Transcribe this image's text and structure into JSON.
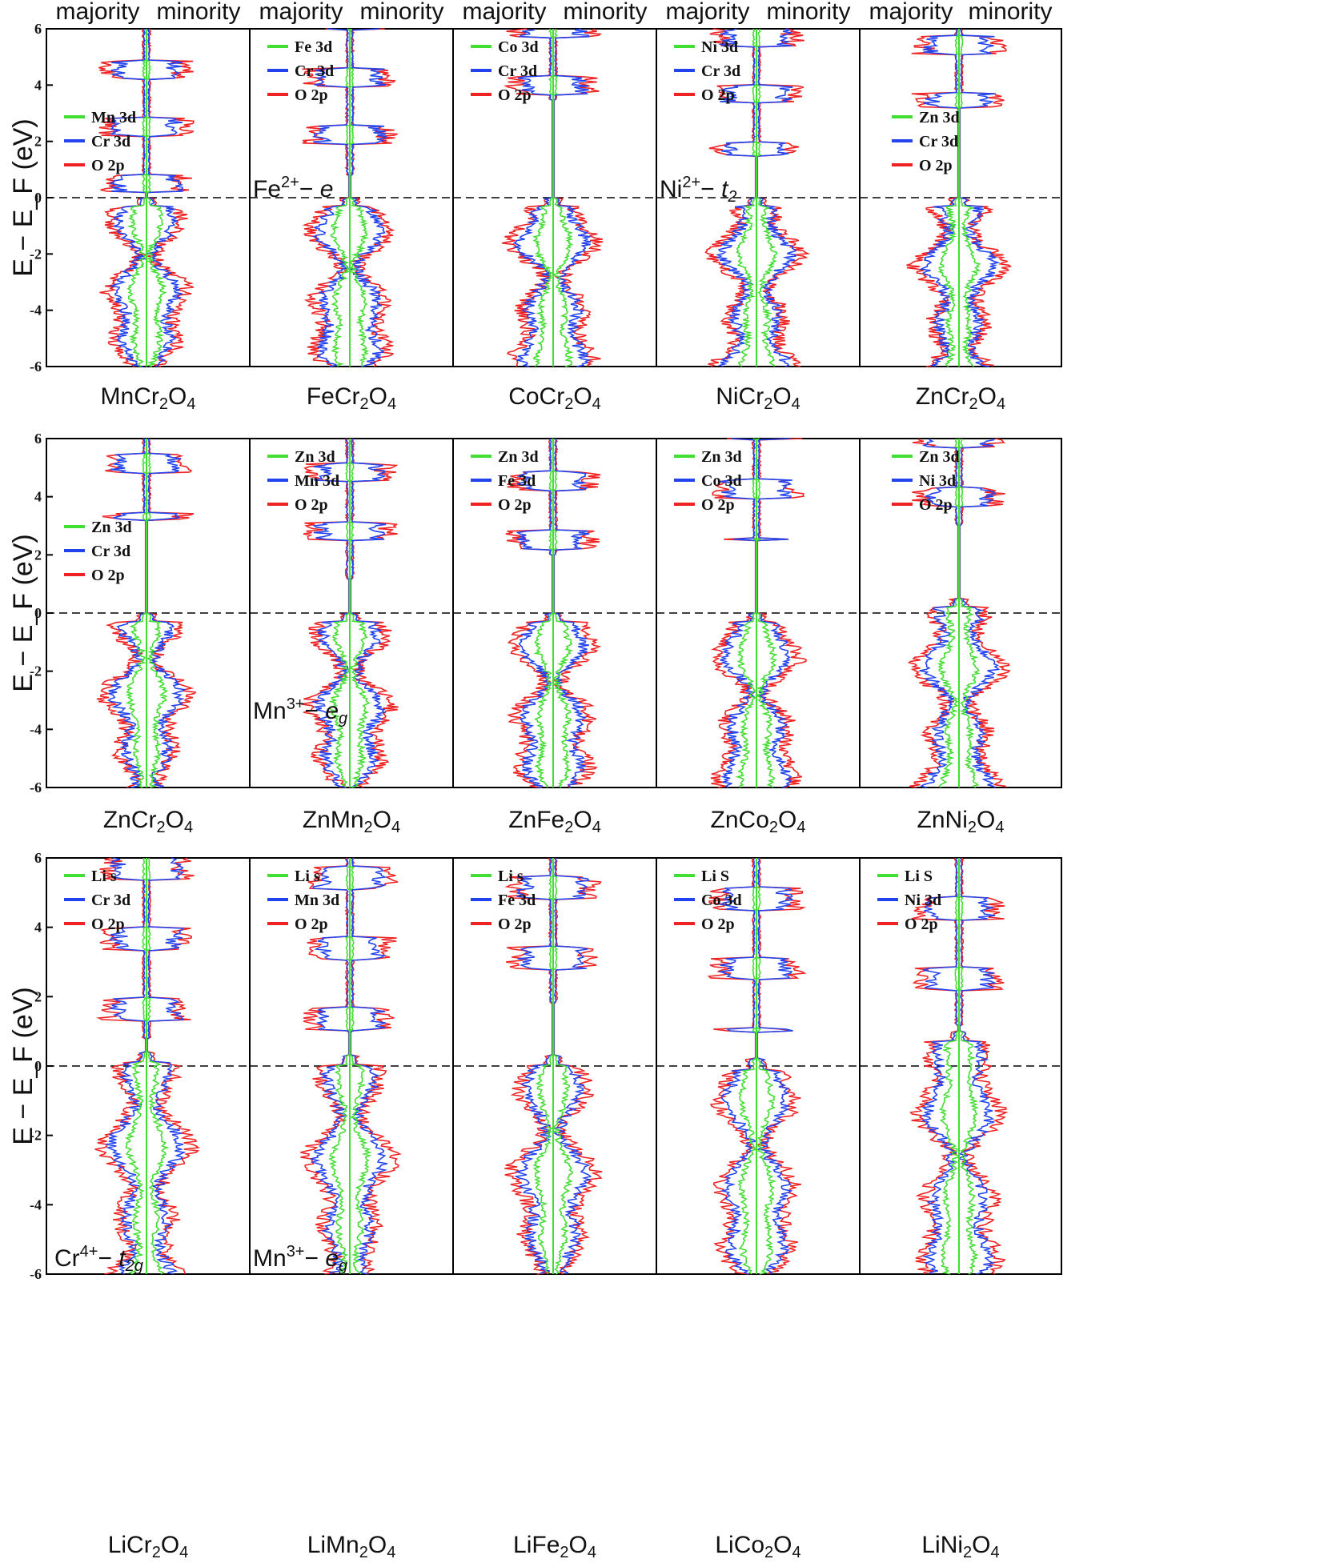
{
  "header": {
    "majority": "majority",
    "minority": "minority"
  },
  "y_axis_label": "E − E_F (eV)",
  "y_ticks": [
    "-6",
    "-4",
    "-2",
    "0",
    "2",
    "4",
    "6"
  ],
  "colors": {
    "cation": "#44dd33",
    "metal": "#2244ee",
    "oxygen": "#ee2222",
    "lithium": "#44dd33"
  },
  "chart_data": [
    {
      "type": "line",
      "compound": "MnCr2O4",
      "xlabel": "MnCr2O4",
      "ylim": [
        -6,
        6
      ],
      "series": [
        {
          "name": "Mn 3d",
          "color": "#44dd33"
        },
        {
          "name": "Cr 3d",
          "color": "#2244ee"
        },
        {
          "name": "O  2p",
          "color": "#ee2222"
        }
      ]
    },
    {
      "type": "line",
      "compound": "FeCr2O4",
      "xlabel": "FeCr2O4",
      "ylim": [
        -6,
        6
      ],
      "series": [
        {
          "name": "Fe 3d",
          "color": "#44dd33"
        },
        {
          "name": "Cr 3d",
          "color": "#2244ee"
        },
        {
          "name": "O  2p",
          "color": "#ee2222"
        }
      ],
      "annotation": "Fe2+ − e"
    },
    {
      "type": "line",
      "compound": "CoCr2O4",
      "xlabel": "CoCr2O4",
      "ylim": [
        -6,
        6
      ],
      "series": [
        {
          "name": "Co 3d",
          "color": "#44dd33"
        },
        {
          "name": "Cr 3d",
          "color": "#2244ee"
        },
        {
          "name": "O  2p",
          "color": "#ee2222"
        }
      ]
    },
    {
      "type": "line",
      "compound": "NiCr2O4",
      "xlabel": "NiCr2O4",
      "ylim": [
        -6,
        6
      ],
      "series": [
        {
          "name": "Ni 3d",
          "color": "#44dd33"
        },
        {
          "name": "Cr 3d",
          "color": "#2244ee"
        },
        {
          "name": "O  2p",
          "color": "#ee2222"
        }
      ],
      "annotation": "Ni2+ − t2"
    },
    {
      "type": "line",
      "compound": "ZnCr2O4",
      "xlabel": "ZnCr2O4",
      "ylim": [
        -6,
        6
      ],
      "series": [
        {
          "name": "Zn 3d",
          "color": "#44dd33"
        },
        {
          "name": "Cr 3d",
          "color": "#2244ee"
        },
        {
          "name": "O 2p",
          "color": "#ee2222"
        }
      ]
    },
    {
      "type": "line",
      "compound": "ZnCr2O4",
      "xlabel": "ZnCr2O4",
      "ylim": [
        -6,
        6
      ],
      "series": [
        {
          "name": "Zn 3d",
          "color": "#44dd33"
        },
        {
          "name": "Cr 3d",
          "color": "#2244ee"
        },
        {
          "name": "O 2p",
          "color": "#ee2222"
        }
      ]
    },
    {
      "type": "line",
      "compound": "ZnMn2O4",
      "xlabel": "ZnMn2O4",
      "ylim": [
        -6,
        6
      ],
      "series": [
        {
          "name": "Zn 3d",
          "color": "#44dd33"
        },
        {
          "name": "Mn 3d",
          "color": "#2244ee"
        },
        {
          "name": "O  2p",
          "color": "#ee2222"
        }
      ],
      "annotation": "Mn3+ − eg"
    },
    {
      "type": "line",
      "compound": "ZnFe2O4",
      "xlabel": "ZnFe2O4",
      "ylim": [
        -6,
        6
      ],
      "series": [
        {
          "name": "Zn 3d",
          "color": "#44dd33"
        },
        {
          "name": "Fe 3d",
          "color": "#2244ee"
        },
        {
          "name": "O 2p",
          "color": "#ee2222"
        }
      ]
    },
    {
      "type": "line",
      "compound": "ZnCo2O4",
      "xlabel": "ZnCo2O4",
      "ylim": [
        -6,
        6
      ],
      "series": [
        {
          "name": "Zn 3d",
          "color": "#44dd33"
        },
        {
          "name": "Co 3d",
          "color": "#2244ee"
        },
        {
          "name": "O 2p",
          "color": "#ee2222"
        }
      ]
    },
    {
      "type": "line",
      "compound": "ZnNi2O4",
      "xlabel": "ZnNi2O4",
      "ylim": [
        -6,
        6
      ],
      "series": [
        {
          "name": "Zn 3d",
          "color": "#44dd33"
        },
        {
          "name": "Ni 3d",
          "color": "#2244ee"
        },
        {
          "name": "O  2p",
          "color": "#ee2222"
        }
      ]
    },
    {
      "type": "line",
      "compound": "LiCr2O4",
      "xlabel": "LiCr2O4",
      "ylim": [
        -6,
        6
      ],
      "series": [
        {
          "name": "Li  s",
          "color": "#44dd33"
        },
        {
          "name": "Cr 3d",
          "color": "#2244ee"
        },
        {
          "name": "O  2p",
          "color": "#ee2222"
        }
      ],
      "annotation": "Cr4+ − t2g"
    },
    {
      "type": "line",
      "compound": "LiMn2O4",
      "xlabel": "LiMn2O4",
      "ylim": [
        -6,
        6
      ],
      "series": [
        {
          "name": "Li  s",
          "color": "#44dd33"
        },
        {
          "name": "Mn 3d",
          "color": "#2244ee"
        },
        {
          "name": "O  2p",
          "color": "#ee2222"
        }
      ],
      "annotation": "Mn3+ − eg"
    },
    {
      "type": "line",
      "compound": "LiFe2O4",
      "xlabel": "LiFe2O4",
      "ylim": [
        -6,
        6
      ],
      "series": [
        {
          "name": "Li  s",
          "color": "#44dd33"
        },
        {
          "name": "Fe 3d",
          "color": "#2244ee"
        },
        {
          "name": "O  2p",
          "color": "#ee2222"
        }
      ]
    },
    {
      "type": "line",
      "compound": "LiCo2O4",
      "xlabel": "LiCo2O4",
      "ylim": [
        -6,
        6
      ],
      "series": [
        {
          "name": "Li S",
          "color": "#44dd33"
        },
        {
          "name": "Co 3d",
          "color": "#2244ee"
        },
        {
          "name": "O 2p",
          "color": "#ee2222"
        }
      ]
    },
    {
      "type": "line",
      "compound": "LiNi2O4",
      "xlabel": "LiNi2O4",
      "ylim": [
        -6,
        6
      ],
      "series": [
        {
          "name": "Li S",
          "color": "#44dd33"
        },
        {
          "name": "Ni 3d",
          "color": "#2244ee"
        },
        {
          "name": "O 2p",
          "color": "#ee2222"
        }
      ]
    }
  ]
}
